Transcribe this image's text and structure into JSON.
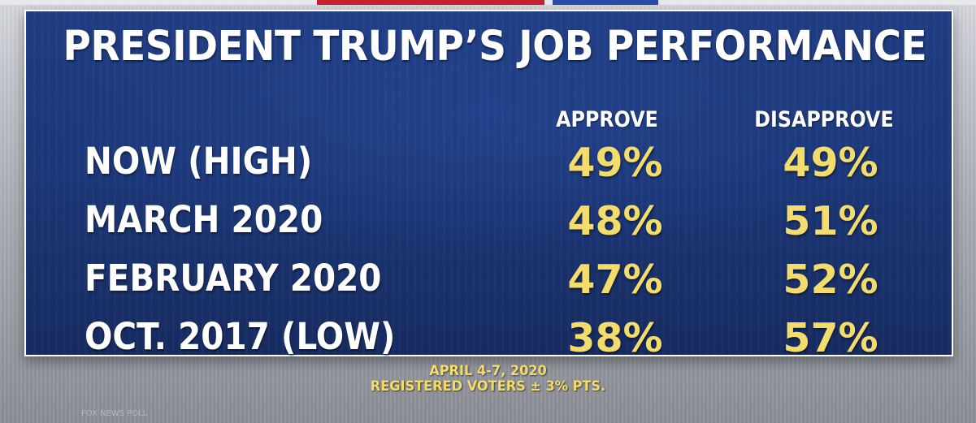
{
  "title": "PRESIDENT TRUMP’S JOB PERFORMANCE",
  "columns": [
    "APPROVE",
    "DISAPPROVE"
  ],
  "footer": {
    "line1": "APRIL 4-7, 2020",
    "line2": "REGISTERED VOTERS ± 3% PTS."
  },
  "source": "FOX NEWS POLL",
  "colors": {
    "panel": "#1c3778",
    "title_text": "#ffffff",
    "value_text": "#f3dc6a"
  },
  "chart_data": {
    "type": "table",
    "title": "PRESIDENT TRUMP’S JOB PERFORMANCE",
    "columns": [
      "APPROVE",
      "DISAPPROVE"
    ],
    "rows": [
      {
        "label": "NOW (HIGH)",
        "approve": "49%",
        "disapprove": "49%"
      },
      {
        "label": "MARCH 2020",
        "approve": "48%",
        "disapprove": "51%"
      },
      {
        "label": "FEBRUARY 2020",
        "approve": "47%",
        "disapprove": "52%"
      },
      {
        "label": "OCT. 2017 (LOW)",
        "approve": "38%",
        "disapprove": "57%"
      }
    ]
  }
}
